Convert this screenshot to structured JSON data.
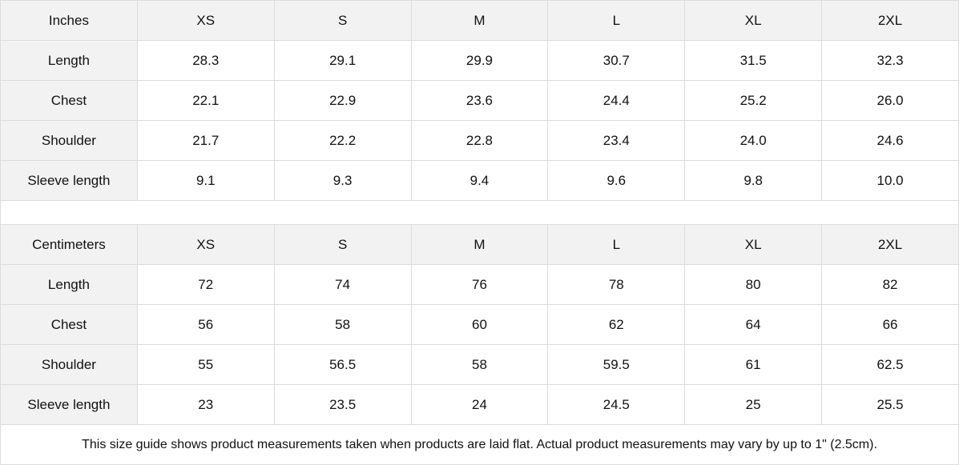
{
  "sizes": [
    "XS",
    "S",
    "M",
    "L",
    "XL",
    "2XL"
  ],
  "tables": [
    {
      "unit": "Inches",
      "rows": [
        {
          "label": "Length",
          "values": [
            "28.3",
            "29.1",
            "29.9",
            "30.7",
            "31.5",
            "32.3"
          ]
        },
        {
          "label": "Chest",
          "values": [
            "22.1",
            "22.9",
            "23.6",
            "24.4",
            "25.2",
            "26.0"
          ]
        },
        {
          "label": "Shoulder",
          "values": [
            "21.7",
            "22.2",
            "22.8",
            "23.4",
            "24.0",
            "24.6"
          ]
        },
        {
          "label": "Sleeve length",
          "values": [
            "9.1",
            "9.3",
            "9.4",
            "9.6",
            "9.8",
            "10.0"
          ]
        }
      ]
    },
    {
      "unit": "Centimeters",
      "rows": [
        {
          "label": "Length",
          "values": [
            "72",
            "74",
            "76",
            "78",
            "80",
            "82"
          ]
        },
        {
          "label": "Chest",
          "values": [
            "56",
            "58",
            "60",
            "62",
            "64",
            "66"
          ]
        },
        {
          "label": "Shoulder",
          "values": [
            "55",
            "56.5",
            "58",
            "59.5",
            "61",
            "62.5"
          ]
        },
        {
          "label": "Sleeve length",
          "values": [
            "23",
            "23.5",
            "24",
            "24.5",
            "25",
            "25.5"
          ]
        }
      ]
    }
  ],
  "footnote": "This size guide shows product measurements taken when products are laid flat.  Actual product measurements may vary by up to 1\" (2.5cm).",
  "colors": {
    "header_bg": "#f2f2f2",
    "border": "#dcdcdc"
  }
}
